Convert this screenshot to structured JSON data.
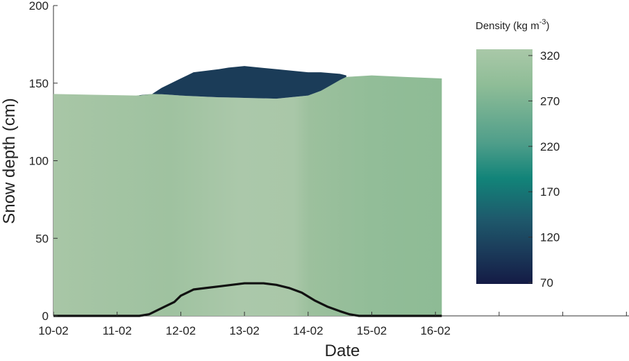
{
  "chart_data": {
    "type": "area",
    "xlabel": "Date",
    "ylabel": "Snow depth (cm)",
    "x_categories": [
      "10-02",
      "11-02",
      "12-02",
      "13-02",
      "14-02",
      "15-02",
      "16-02"
    ],
    "ylim": [
      0,
      200
    ],
    "yticks": [
      0,
      50,
      100,
      150,
      200
    ],
    "snow_surface": {
      "x": [
        0.0,
        1.3,
        1.55,
        1.65,
        2.0,
        2.5,
        3.5,
        4.0,
        4.2,
        4.4,
        4.6,
        5.0,
        5.5,
        6.1
      ],
      "y": [
        143,
        142,
        143,
        143,
        142,
        141,
        140,
        142,
        145,
        150,
        154,
        155,
        154,
        153
      ]
    },
    "new_snow_top": {
      "x": [
        1.35,
        1.55,
        1.7,
        1.85,
        2.0,
        2.1,
        2.2,
        2.4,
        2.6,
        2.75,
        3.0,
        3.5,
        4.0,
        4.2,
        4.5,
        4.6
      ],
      "y": [
        142,
        143,
        147,
        150,
        153,
        155,
        157,
        158,
        159,
        160,
        161,
        159,
        157,
        157,
        156,
        155
      ]
    },
    "bottom_line": {
      "x": [
        0.0,
        1.35,
        1.5,
        1.6,
        1.75,
        1.9,
        2.0,
        2.2,
        2.4,
        2.6,
        2.8,
        3.0,
        3.3,
        3.5,
        3.7,
        3.9,
        4.1,
        4.3,
        4.5,
        4.65,
        4.8,
        6.1
      ],
      "y": [
        0,
        0,
        1,
        3,
        6,
        9,
        13,
        17,
        18,
        19,
        20,
        21,
        21,
        20,
        18,
        15,
        10,
        6,
        3,
        1,
        0,
        0
      ]
    },
    "colorbar": {
      "title": "Density (kg m⁻³)",
      "title_main": "Density (kg m",
      "title_exp": "-3",
      "title_close": ")",
      "ticks": [
        320,
        270,
        220,
        170,
        120,
        70
      ],
      "range": [
        70,
        320
      ],
      "colors": [
        "#a9c8a8",
        "#8fbd97",
        "#4f9e8a",
        "#128479",
        "#1e5a6c",
        "#1b3b5a",
        "#141b45"
      ]
    },
    "colors": {
      "old_snow": "#a8c6a6",
      "old_snow_dark": "#8fbc95",
      "new_snow": "#1b3c58",
      "line": "#111111"
    }
  }
}
